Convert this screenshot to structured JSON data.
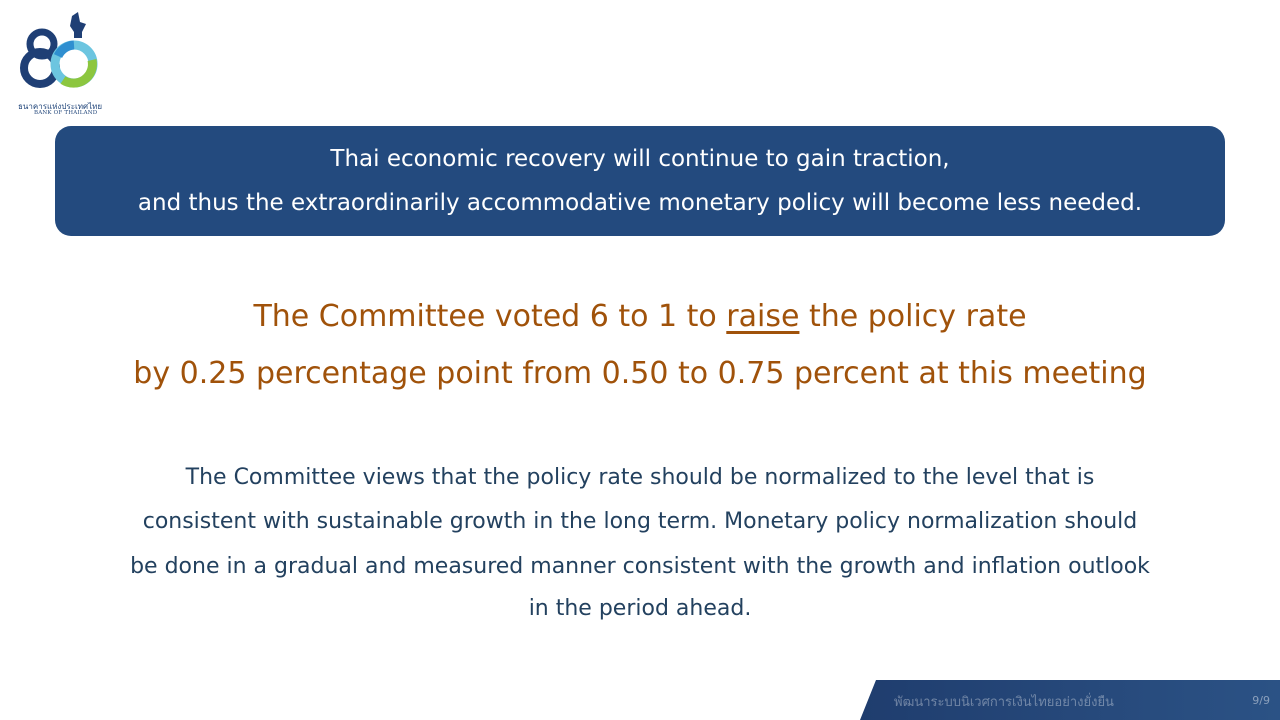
{
  "logo": {
    "thai_name": "ธนาคารแห่งประเทศไทย",
    "english_name": "BANK OF THAILAND",
    "number_mark": "80"
  },
  "banner": {
    "line1": "Thai economic recovery will continue to gain traction,",
    "line2": "and thus the extraordinarily accommodative monetary policy will become less needed."
  },
  "decision": {
    "line1_before": "The Committee voted 6 to 1 to ",
    "line1_emphasis": "raise",
    "line1_after": " the policy rate",
    "line2": "by 0.25 percentage point from 0.50 to 0.75 percent at this meeting"
  },
  "paragraph": {
    "line1": "The Committee views that the policy rate should be normalized to the level that is",
    "line2": "consistent with sustainable growth in the long term. Monetary policy normalization should",
    "line3": "be done in a gradual and measured manner consistent with the growth and inflation outlook",
    "line4": "in the period ahead."
  },
  "footer": {
    "slogan": "พัฒนาระบบนิเวศการเงินไทยอย่างยั่งยืน",
    "page_number": "9/9"
  },
  "colors": {
    "banner_bg": "#234a7e",
    "decision_text": "#a0520a",
    "body_text": "#23415f"
  }
}
